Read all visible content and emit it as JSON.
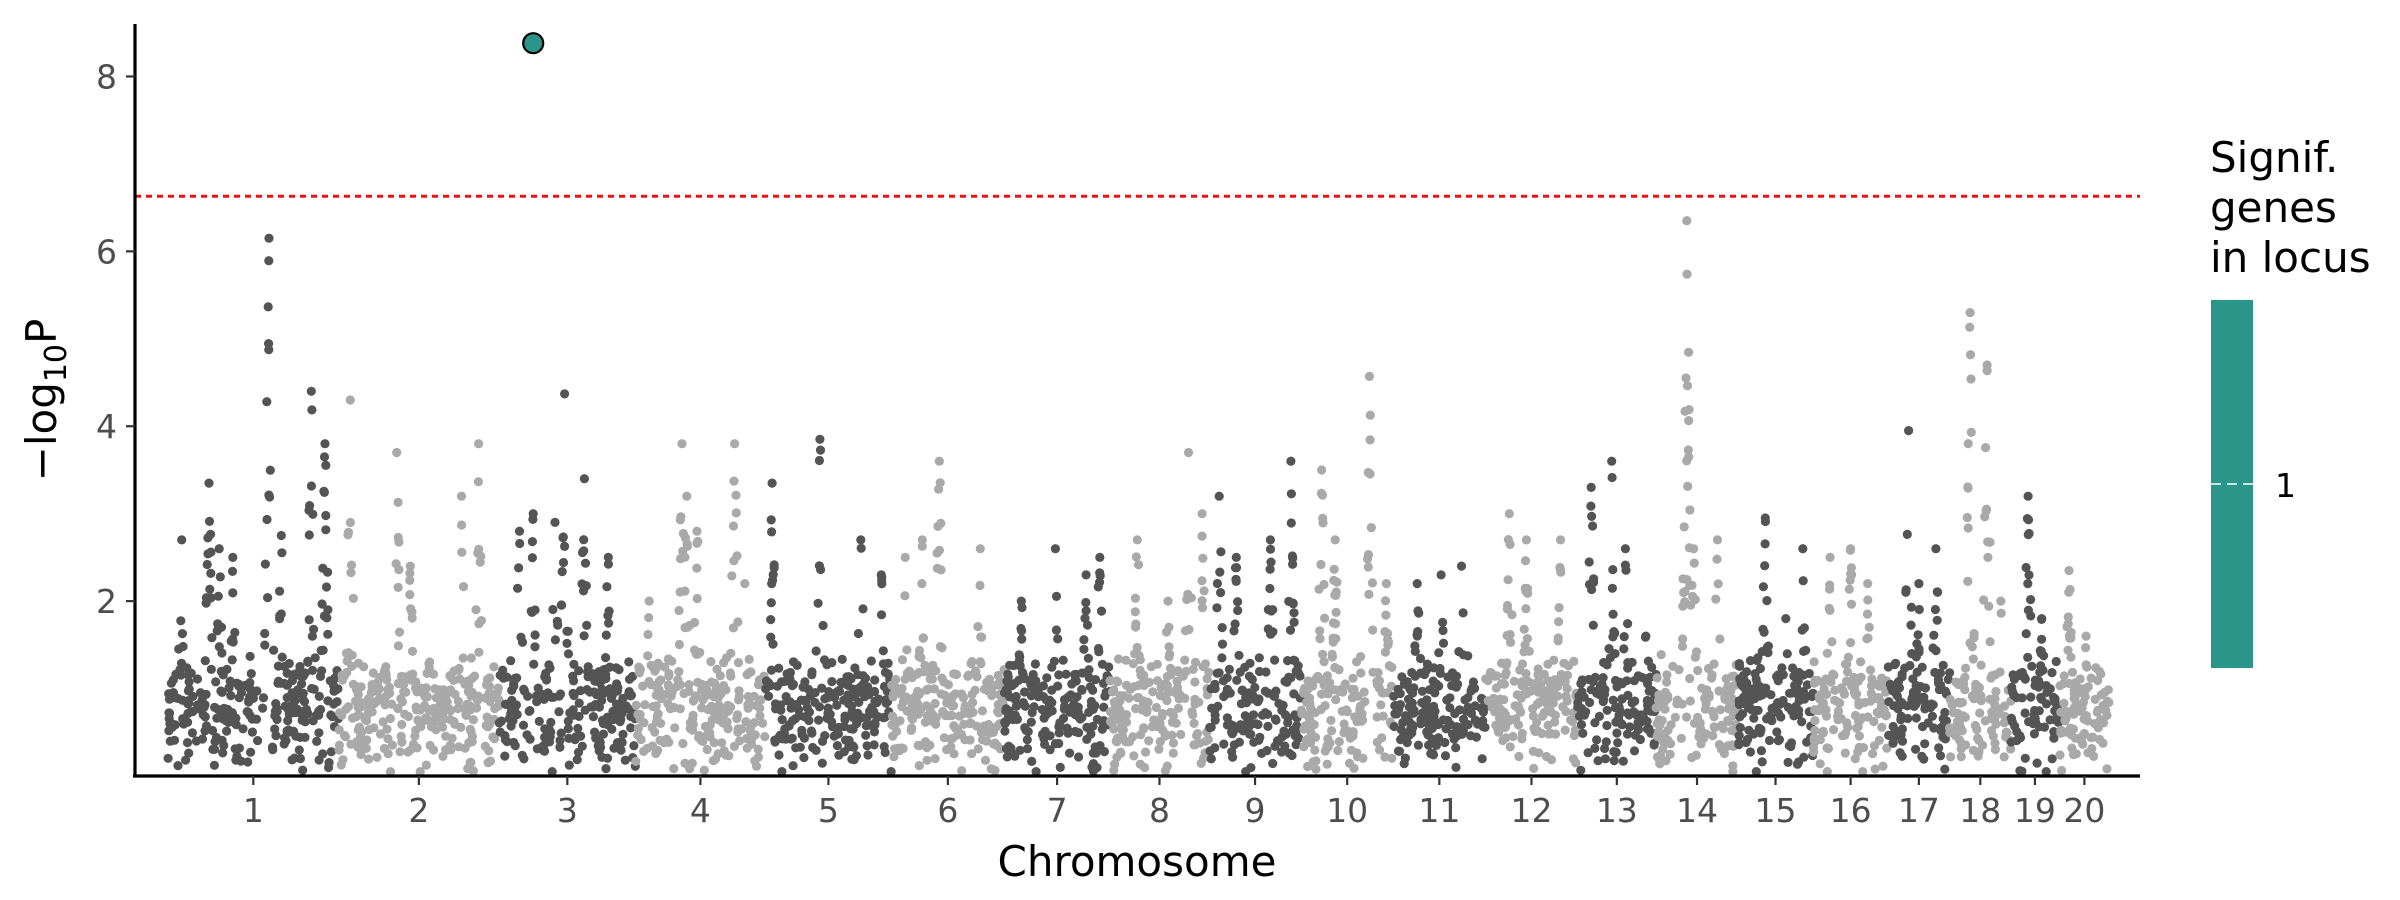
{
  "chart_data": {
    "type": "scatter",
    "subtype": "manhattan",
    "xlabel": "Chromosome",
    "ylabel_parts": [
      "−log",
      "10",
      "P"
    ],
    "yticks": [
      2,
      4,
      6,
      8
    ],
    "ylim": [
      0,
      8.6
    ],
    "grid": false,
    "threshold": {
      "value": 6.63,
      "color": "#ee1111",
      "style": "dashed"
    },
    "alternating_colors": [
      "#545454",
      "#a9a9a9"
    ],
    "chromosomes": [
      {
        "label": "1",
        "start": 0,
        "end": 250,
        "peaks": [
          [
            20,
            2.7
          ],
          [
            60,
            3.35
          ],
          [
            75,
            2.6
          ],
          [
            95,
            2.5
          ],
          [
            148,
            6.15
          ],
          [
            166,
            2.75
          ],
          [
            210,
            4.4
          ],
          [
            230,
            3.8
          ]
        ]
      },
      {
        "label": "2",
        "start": 250,
        "end": 485,
        "peaks": [
          [
            17,
            4.3
          ],
          [
            85,
            3.7
          ],
          [
            105,
            2.4
          ],
          [
            180,
            3.2
          ],
          [
            205,
            3.8
          ]
        ]
      },
      {
        "label": "3",
        "start": 485,
        "end": 685,
        "peaks": [
          [
            30,
            2.8
          ],
          [
            50,
            3.0
          ],
          [
            82,
            2.9
          ],
          [
            96,
            4.37
          ],
          [
            125,
            3.4
          ],
          [
            160,
            2.5
          ]
        ]
      },
      {
        "label": "4",
        "start": 685,
        "end": 875,
        "peaks": [
          [
            20,
            2.0
          ],
          [
            68,
            3.8
          ],
          [
            75,
            3.2
          ],
          [
            90,
            2.8
          ],
          [
            145,
            3.8
          ],
          [
            160,
            2.2
          ]
        ]
      },
      {
        "label": "5",
        "start": 875,
        "end": 1060,
        "peaks": [
          [
            10,
            3.35
          ],
          [
            80,
            3.85
          ],
          [
            140,
            2.7
          ],
          [
            170,
            2.3
          ]
        ]
      },
      {
        "label": "6",
        "start": 1060,
        "end": 1225,
        "peaks": [
          [
            20,
            2.5
          ],
          [
            45,
            2.7
          ],
          [
            70,
            3.6
          ],
          [
            130,
            2.6
          ]
        ]
      },
      {
        "label": "7",
        "start": 1225,
        "end": 1380,
        "peaks": [
          [
            25,
            2.0
          ],
          [
            75,
            2.6
          ],
          [
            120,
            2.3
          ],
          [
            140,
            2.5
          ]
        ]
      },
      {
        "label": "8",
        "start": 1380,
        "end": 1525,
        "peaks": [
          [
            40,
            2.7
          ],
          [
            85,
            2.0
          ],
          [
            115,
            3.7
          ],
          [
            135,
            3.0
          ]
        ]
      },
      {
        "label": "9",
        "start": 1525,
        "end": 1660,
        "peaks": [
          [
            15,
            3.2
          ],
          [
            40,
            2.5
          ],
          [
            90,
            2.7
          ],
          [
            120,
            3.6
          ]
        ]
      },
      {
        "label": "10",
        "start": 1660,
        "end": 1795,
        "peaks": [
          [
            30,
            3.5
          ],
          [
            50,
            2.7
          ],
          [
            100,
            4.57
          ],
          [
            125,
            2.2
          ]
        ]
      },
      {
        "label": "11",
        "start": 1795,
        "end": 1930,
        "peaks": [
          [
            35,
            2.2
          ],
          [
            70,
            2.3
          ],
          [
            100,
            2.4
          ]
        ]
      },
      {
        "label": "12",
        "start": 1930,
        "end": 2065,
        "peaks": [
          [
            35,
            3.0
          ],
          [
            60,
            2.7
          ],
          [
            110,
            2.7
          ]
        ]
      },
      {
        "label": "13",
        "start": 2065,
        "end": 2180,
        "peaks": [
          [
            20,
            3.3
          ],
          [
            50,
            3.6
          ],
          [
            70,
            2.6
          ],
          [
            100,
            1.6
          ]
        ]
      },
      {
        "label": "14",
        "start": 2180,
        "end": 2300,
        "peaks": [
          [
            45,
            6.35
          ],
          [
            55,
            2.6
          ],
          [
            90,
            2.7
          ]
        ]
      },
      {
        "label": "15",
        "start": 2300,
        "end": 2410,
        "peaks": [
          [
            40,
            2.95
          ],
          [
            70,
            1.8
          ],
          [
            95,
            2.6
          ]
        ]
      },
      {
        "label": "16",
        "start": 2410,
        "end": 2520,
        "peaks": [
          [
            25,
            2.5
          ],
          [
            55,
            2.6
          ],
          [
            80,
            2.2
          ]
        ]
      },
      {
        "label": "17",
        "start": 2520,
        "end": 2610,
        "peaks": [
          [
            30,
            3.95
          ],
          [
            45,
            2.2
          ],
          [
            70,
            2.6
          ]
        ]
      },
      {
        "label": "18",
        "start": 2610,
        "end": 2700,
        "peaks": [
          [
            30,
            5.3
          ],
          [
            55,
            4.7
          ],
          [
            75,
            2.0
          ]
        ]
      },
      {
        "label": "19",
        "start": 2700,
        "end": 2770,
        "peaks": [
          [
            25,
            3.2
          ],
          [
            45,
            1.8
          ]
        ]
      },
      {
        "label": "20",
        "start": 2770,
        "end": 2845,
        "peaks": [
          [
            15,
            2.35
          ],
          [
            40,
            1.6
          ]
        ]
      }
    ],
    "significant_points": [
      {
        "chromosome": "3",
        "position": 50,
        "y": 8.38,
        "color": "#2a9589"
      }
    ]
  },
  "legend": {
    "title_lines": [
      "Signif.",
      "genes",
      "in locus"
    ],
    "color": "#2a9589",
    "label": "1"
  }
}
